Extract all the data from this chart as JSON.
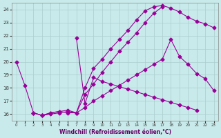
{
  "xlabel": "Windchill (Refroidissement éolien,°C)",
  "bg_color": "#c8eaea",
  "grid_color": "#aacccc",
  "line_color": "#990099",
  "ylim": [
    15.5,
    24.5
  ],
  "xlim": [
    -0.5,
    23.5
  ],
  "yticks": [
    16,
    17,
    18,
    19,
    20,
    21,
    22,
    23,
    24
  ],
  "xticks": [
    0,
    1,
    2,
    3,
    4,
    5,
    6,
    7,
    8,
    9,
    10,
    11,
    12,
    13,
    14,
    15,
    16,
    17,
    18,
    19,
    20,
    21,
    22,
    23
  ],
  "curve1_x": [
    0,
    1,
    2,
    3,
    4,
    5,
    6,
    7,
    8,
    9,
    10,
    11,
    12,
    13,
    14,
    15,
    16,
    17
  ],
  "curve1_y": [
    20.0,
    18.2,
    16.1,
    15.9,
    16.1,
    16.2,
    16.1,
    16.1,
    17.5,
    18.3,
    19.2,
    20.0,
    20.8,
    21.5,
    22.2,
    23.0,
    23.7,
    24.2
  ],
  "curve2_x": [
    2,
    3,
    4,
    5,
    6,
    7,
    8,
    9,
    10,
    11,
    12,
    13,
    14,
    15,
    16,
    17,
    18,
    19,
    20,
    21,
    22,
    23
  ],
  "curve2_y": [
    16.1,
    15.9,
    16.1,
    16.2,
    16.3,
    16.1,
    18.0,
    19.5,
    20.2,
    21.0,
    21.7,
    22.4,
    23.2,
    23.9,
    24.2,
    24.3,
    24.1,
    23.8,
    23.4,
    23.1,
    22.9,
    22.6
  ],
  "curve3_x": [
    7,
    8,
    9,
    10,
    11,
    12,
    13,
    14,
    15,
    16,
    17,
    18,
    19,
    20,
    21
  ],
  "curve3_y": [
    21.8,
    16.8,
    18.8,
    18.5,
    18.3,
    18.1,
    17.9,
    17.7,
    17.5,
    17.3,
    17.1,
    16.9,
    16.7,
    16.5,
    16.3
  ],
  "curve4_x": [
    2,
    3,
    4,
    5,
    6,
    7,
    8,
    9,
    10,
    11,
    12,
    13,
    14,
    15,
    16,
    17,
    18,
    19,
    20,
    21,
    22,
    23
  ],
  "curve4_y": [
    16.1,
    15.9,
    16.0,
    16.1,
    16.2,
    16.1,
    16.5,
    17.0,
    17.4,
    17.8,
    18.2,
    18.6,
    19.0,
    19.4,
    19.8,
    20.2,
    21.7,
    20.4,
    19.8,
    19.1,
    18.7,
    17.8
  ]
}
